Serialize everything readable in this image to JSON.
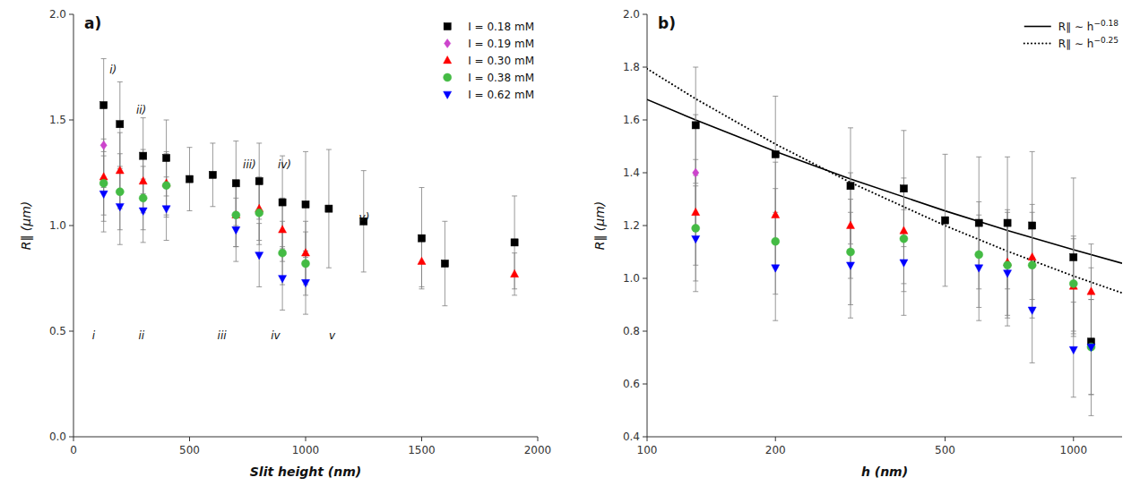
{
  "chart_data": [
    {
      "type": "scatter",
      "title": "a)",
      "x_label": "Slit height (nm)",
      "y_label": "R∥ (μm)",
      "xlim": [
        0,
        2000
      ],
      "ylim": [
        0,
        2
      ],
      "xticks": [
        0,
        500,
        1000,
        1500,
        2000
      ],
      "yticks": [
        {
          "value": 0,
          "label": "0.0"
        },
        0.5,
        {
          "value": 1,
          "label": "1.0"
        },
        1.5,
        {
          "value": 2,
          "label": "2.0"
        }
      ],
      "grid": false,
      "legend": "upper right",
      "series": [
        {
          "name": "I = 0.18 mM",
          "color": "black",
          "marker": "square",
          "x": [
            130,
            200,
            300,
            400,
            500,
            600,
            700,
            800,
            900,
            1000,
            1100,
            1250,
            1500,
            1600,
            1900
          ],
          "values": [
            1.57,
            1.48,
            1.33,
            1.32,
            1.22,
            1.24,
            1.2,
            1.21,
            1.11,
            1.1,
            1.08,
            1.02,
            0.94,
            0.82,
            0.92
          ],
          "errors": [
            0.22,
            0.2,
            0.18,
            0.18,
            0.15,
            0.15,
            0.2,
            0.18,
            0.22,
            0.25,
            0.28,
            0.24,
            0.24,
            0.2,
            0.22
          ]
        },
        {
          "name": "I = 0.19 mM",
          "color": "#cc44cc",
          "marker": "diamond",
          "x": [
            130
          ],
          "values": [
            1.38
          ],
          "errors": [
            0.2
          ]
        },
        {
          "name": "I = 0.30 mM",
          "color": "red",
          "marker": "triangle-up",
          "x": [
            130,
            200,
            300,
            400,
            700,
            800,
            900,
            1000,
            1500,
            1900
          ],
          "values": [
            1.23,
            1.26,
            1.21,
            1.2,
            1.05,
            1.08,
            0.98,
            0.87,
            0.83,
            0.77
          ],
          "errors": [
            0.18,
            0.18,
            0.15,
            0.15,
            0.15,
            0.15,
            0.15,
            0.15,
            0.12,
            0.1
          ]
        },
        {
          "name": "I = 0.38 mM",
          "color": "#44bb44",
          "marker": "circle",
          "x": [
            130,
            200,
            300,
            400,
            700,
            800,
            900,
            1000
          ],
          "values": [
            1.2,
            1.16,
            1.13,
            1.19,
            1.05,
            1.06,
            0.87,
            0.82
          ],
          "errors": [
            0.18,
            0.18,
            0.15,
            0.15,
            0.15,
            0.15,
            0.15,
            0.15
          ]
        },
        {
          "name": "I = 0.62 mM",
          "color": "blue",
          "marker": "triangle-down",
          "x": [
            130,
            200,
            300,
            400,
            700,
            800,
            900,
            1000
          ],
          "values": [
            1.15,
            1.09,
            1.07,
            1.08,
            0.98,
            0.86,
            0.75,
            0.73
          ],
          "errors": [
            0.18,
            0.18,
            0.15,
            0.15,
            0.15,
            0.15,
            0.15,
            0.15
          ]
        }
      ],
      "annotations": [
        {
          "text": "i)",
          "x": 155,
          "y": 1.72
        },
        {
          "text": "ii)",
          "x": 270,
          "y": 1.53
        },
        {
          "text": "iii)",
          "x": 730,
          "y": 1.27
        },
        {
          "text": "iv)",
          "x": 880,
          "y": 1.27
        },
        {
          "text": "v)",
          "x": 1230,
          "y": 1.02
        },
        {
          "text": "i",
          "x": 80,
          "y": 0.46
        },
        {
          "text": "ii",
          "x": 280,
          "y": 0.46
        },
        {
          "text": "iii",
          "x": 620,
          "y": 0.46
        },
        {
          "text": "iv",
          "x": 850,
          "y": 0.46
        },
        {
          "text": "v",
          "x": 1100,
          "y": 0.46
        }
      ]
    },
    {
      "type": "scatter",
      "title": "b)",
      "x_label": "h (nm)",
      "y_label": "R∥ (μm)",
      "log": "x",
      "xlim": [
        100,
        1300
      ],
      "ylim": [
        0.4,
        2
      ],
      "xticks": [
        100,
        200,
        500,
        1000
      ],
      "yticks": [
        0.4,
        0.6,
        0.8,
        {
          "value": 1,
          "label": "1.0"
        },
        1.2,
        1.4,
        1.6,
        1.8,
        {
          "value": 2,
          "label": "2.0"
        }
      ],
      "grid": false,
      "legend": "upper right",
      "series": [
        {
          "color": "black",
          "marker": "square",
          "x": [
            130,
            200,
            300,
            400,
            500,
            600,
            700,
            800,
            1000,
            1100
          ],
          "values": [
            1.58,
            1.47,
            1.35,
            1.34,
            1.22,
            1.21,
            1.21,
            1.2,
            1.08,
            0.76
          ],
          "errors": [
            0.22,
            0.22,
            0.22,
            0.22,
            0.25,
            0.25,
            0.25,
            0.28,
            0.3,
            0.28
          ]
        },
        {
          "color": "#cc44cc",
          "marker": "diamond",
          "x": [
            130
          ],
          "values": [
            1.4
          ],
          "errors": [
            0.22
          ]
        },
        {
          "color": "red",
          "marker": "triangle-up",
          "x": [
            130,
            200,
            300,
            400,
            700,
            800,
            1000,
            1100
          ],
          "values": [
            1.25,
            1.24,
            1.2,
            1.18,
            1.06,
            1.08,
            0.97,
            0.95
          ],
          "errors": [
            0.2,
            0.2,
            0.2,
            0.2,
            0.2,
            0.2,
            0.18,
            0.18
          ]
        },
        {
          "color": "#44bb44",
          "marker": "circle",
          "x": [
            130,
            200,
            300,
            400,
            600,
            700,
            800,
            1000,
            1100
          ],
          "values": [
            1.19,
            1.14,
            1.1,
            1.15,
            1.09,
            1.05,
            1.05,
            0.98,
            0.74
          ],
          "errors": [
            0.2,
            0.2,
            0.2,
            0.2,
            0.2,
            0.2,
            0.2,
            0.18,
            0.18
          ]
        },
        {
          "color": "blue",
          "marker": "triangle-down",
          "x": [
            130,
            200,
            300,
            400,
            600,
            700,
            800,
            1000,
            1100
          ],
          "values": [
            1.15,
            1.04,
            1.05,
            1.06,
            1.04,
            1.02,
            0.88,
            0.73,
            0.74
          ],
          "errors": [
            0.2,
            0.2,
            0.2,
            0.2,
            0.2,
            0.2,
            0.2,
            0.18,
            0.18
          ]
        },
        {
          "name": "R∥ ∼ h−0.18",
          "type": "line",
          "line_style": "solid",
          "color": "black",
          "x": [
            100,
            130,
            200,
            300,
            500,
            700,
            1000,
            1300
          ],
          "values": [
            1.6774,
            1.6,
            1.4806,
            1.3764,
            1.2555,
            1.1817,
            1.1082,
            1.0571
          ]
        },
        {
          "name": "R∥ ∼ h−0.25",
          "type": "line",
          "line_style": "dotted",
          "color": "black",
          "x": [
            100,
            130,
            200,
            300,
            500,
            700,
            1000,
            1300
          ],
          "values": [
            1.7939,
            1.68,
            1.5085,
            1.3631,
            1.1996,
            1.1029,
            1.0088,
            0.9447
          ]
        }
      ]
    }
  ]
}
